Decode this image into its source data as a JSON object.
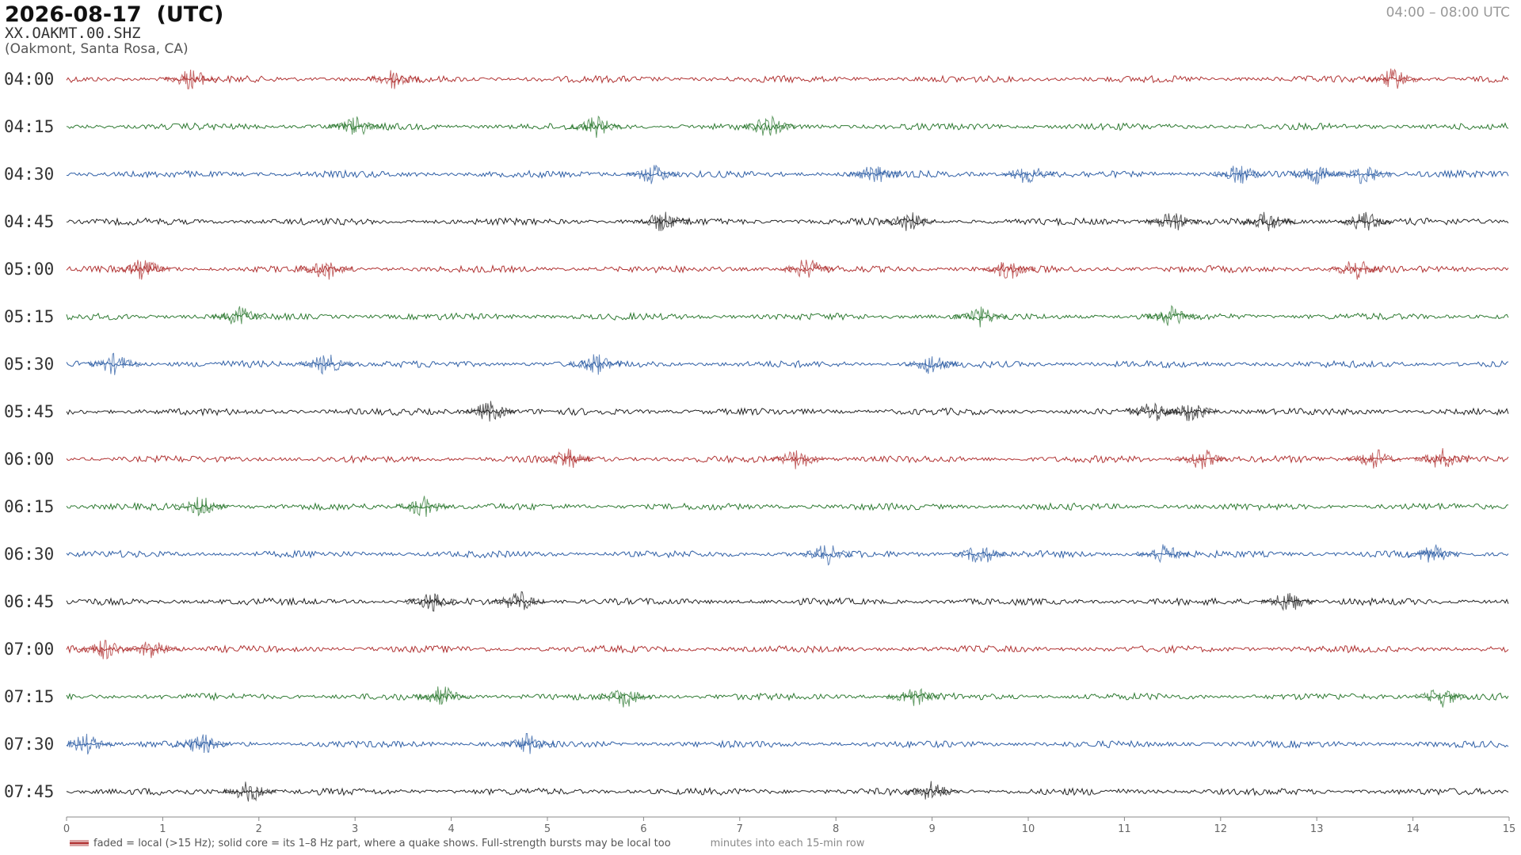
{
  "chart_data": {
    "type": "helicorder",
    "title": "2026-08-17  (UTC)",
    "station": "XX.OAKMT.00.SHZ",
    "location": "(Oakmont, Santa Rosa, CA)",
    "range_label": "04:00 – 08:00 UTC",
    "xlabel": "minutes into each 15-min row",
    "note": "faded = local (>15 Hz); solid core = its 1–8 Hz part, where a quake shows. Full-strength bursts may be local too",
    "xlim": [
      0,
      15
    ],
    "xticks": [
      0,
      1,
      2,
      3,
      4,
      5,
      6,
      7,
      8,
      9,
      10,
      11,
      12,
      13,
      14,
      15
    ],
    "rows": [
      {
        "label": "04:00",
        "color": "#b03232",
        "bursts": [
          1.3,
          3.4,
          13.8
        ]
      },
      {
        "label": "04:15",
        "color": "#2e7a32",
        "bursts": [
          3.0,
          5.5,
          7.3
        ]
      },
      {
        "label": "04:30",
        "color": "#2f5fa6",
        "bursts": [
          6.1,
          8.4,
          10.0,
          12.2,
          13.0,
          13.5
        ]
      },
      {
        "label": "04:45",
        "color": "#222222",
        "bursts": [
          6.2,
          8.75,
          11.5,
          12.5,
          13.5
        ]
      },
      {
        "label": "05:00",
        "color": "#b03232",
        "bursts": [
          0.8,
          2.7,
          7.7,
          9.8,
          13.4
        ]
      },
      {
        "label": "05:15",
        "color": "#2e7a32",
        "bursts": [
          1.8,
          9.5,
          11.5
        ]
      },
      {
        "label": "05:30",
        "color": "#2f5fa6",
        "bursts": [
          0.5,
          2.7,
          5.5,
          9.0
        ]
      },
      {
        "label": "05:45",
        "color": "#222222",
        "bursts": [
          4.4,
          11.3,
          11.7
        ]
      },
      {
        "label": "06:00",
        "color": "#b03232",
        "bursts": [
          5.2,
          7.6,
          11.8,
          13.6,
          14.3
        ]
      },
      {
        "label": "06:15",
        "color": "#2e7a32",
        "bursts": [
          1.4,
          3.7
        ]
      },
      {
        "label": "06:30",
        "color": "#2f5fa6",
        "bursts": [
          7.9,
          9.5,
          11.4,
          14.2
        ]
      },
      {
        "label": "06:45",
        "color": "#222222",
        "bursts": [
          3.8,
          4.7,
          12.7
        ]
      },
      {
        "label": "07:00",
        "color": "#b03232",
        "bursts": [
          0.4,
          0.9
        ]
      },
      {
        "label": "07:15",
        "color": "#2e7a32",
        "bursts": [
          3.9,
          5.8,
          8.8,
          14.3
        ]
      },
      {
        "label": "07:30",
        "color": "#2f5fa6",
        "bursts": [
          0.2,
          1.4,
          4.8
        ]
      },
      {
        "label": "07:45",
        "color": "#222222",
        "bursts": [
          1.9,
          9.0
        ]
      }
    ]
  }
}
